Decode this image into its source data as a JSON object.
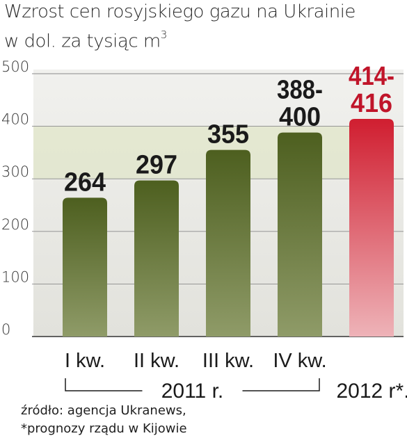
{
  "title": "Wzrost cen rosyjskiego gazu na Ukrainie",
  "subtitle": "w dol. za tysiąc m",
  "subtitle_sup": "3",
  "source": "źródło: agencja Ukranews,",
  "note": "*prognozy rządu w Kijowie",
  "colors": {
    "actual": "#56662a",
    "forecast": "#d41f32",
    "forecast_label": "#c0152a"
  },
  "chart_data": {
    "type": "bar",
    "categories": [
      "I kw.",
      "II kw.",
      "III kw.",
      "IV kw.",
      ""
    ],
    "values": [
      264,
      297,
      355,
      388,
      414
    ],
    "value_labels": [
      [
        "264"
      ],
      [
        "297"
      ],
      [
        "355"
      ],
      [
        "388-",
        "400"
      ],
      [
        "414-",
        "416"
      ]
    ],
    "forecast": [
      false,
      false,
      false,
      false,
      true
    ],
    "groups": [
      {
        "label": "2011 r.",
        "bars": [
          0,
          3
        ]
      },
      {
        "label": "2012 r*.",
        "bars": [
          4,
          4
        ]
      }
    ],
    "yticks": [
      0,
      100,
      200,
      300,
      400,
      500
    ],
    "ylim": [
      0,
      500
    ],
    "highlight_band": [
      300,
      400
    ],
    "grid": true
  }
}
